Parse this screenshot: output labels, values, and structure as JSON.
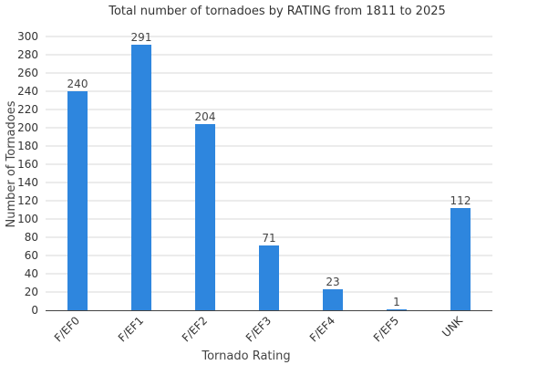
{
  "chart_data": {
    "type": "bar",
    "title": "Total number of tornadoes by RATING from 1811 to 2025",
    "xlabel": "Tornado Rating",
    "ylabel": "Number of Tornadoes",
    "categories": [
      "F/EF0",
      "F/EF1",
      "F/EF2",
      "F/EF3",
      "F/EF4",
      "F/EF5",
      "UNK"
    ],
    "values": [
      240,
      291,
      204,
      71,
      23,
      1,
      112
    ],
    "data_labels": [
      "240",
      "291",
      "204",
      "71",
      "23",
      "1",
      "112"
    ],
    "ylim": [
      0,
      300
    ],
    "yticks": [
      0,
      20,
      40,
      60,
      80,
      100,
      120,
      140,
      160,
      180,
      200,
      220,
      240,
      260,
      280,
      300
    ],
    "ytick_labels": [
      "0",
      "20",
      "40",
      "60",
      "80",
      "100",
      "120",
      "140",
      "160",
      "180",
      "200",
      "220",
      "240",
      "260",
      "280",
      "300"
    ],
    "grid": true,
    "legend": "none",
    "bar_color": "#2e86de"
  }
}
